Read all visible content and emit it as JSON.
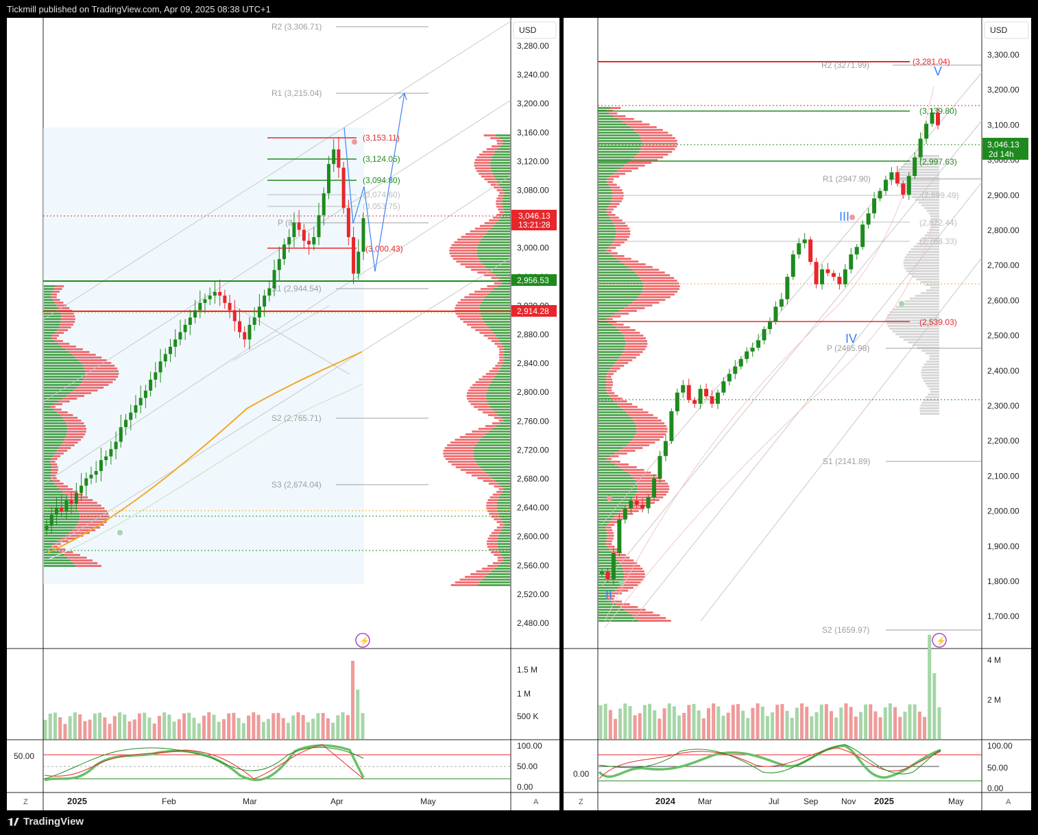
{
  "header": {
    "text": "Tickmill published on TradingView.com, Apr 09, 2025 08:38 UTC+1"
  },
  "footer": {
    "brand": "TradingView"
  },
  "colors": {
    "up": "#1e8a1e",
    "down": "#e8262b",
    "accent_blue": "#3b82f6",
    "orange": "#f5a623",
    "ghost_blue": "#90caf9"
  },
  "left": {
    "currency": "USD",
    "price_ticks": [
      "3,280.00",
      "3,240.00",
      "3,200.00",
      "3,160.00",
      "3,120.00",
      "3,080.00",
      "3,040.00",
      "3,000.00",
      "2,960.00",
      "2,920.00",
      "2,880.00",
      "2,840.00",
      "2,800.00",
      "2,760.00",
      "2,720.00",
      "2,680.00",
      "2,640.00",
      "2,600.00",
      "2,560.00",
      "2,520.00",
      "2,480.00"
    ],
    "last_price": "3,046.13",
    "countdown": "13:21:28",
    "green_tag": "2,956.53",
    "red_tag": "2,914.28",
    "pivots": {
      "r2": "R2 (3,306.71)",
      "r1": "R1 (3,215.04)",
      "p": "P (3,",
      "s1": "S1 (2,944.54)",
      "s2": "S2 (2,765.71)",
      "s3": "S3 (2,674.04)"
    },
    "fib": {
      "f1": "(3,153.11)",
      "f2": "(3,124.05)",
      "f3": "(3,094.80)",
      "f4": "(3,074.60)",
      "f5": "(3,053.75)",
      "f6": "(3,000.43)"
    },
    "vol_ticks": [
      "1.5 M",
      "1 M",
      "500 K"
    ],
    "osc_label": "50.00",
    "osc_ticks": [
      "100.00",
      "50.00",
      "0.00"
    ],
    "time_labels": [
      "2025",
      "Feb",
      "Mar",
      "Apr",
      "May"
    ],
    "zoom_z": "Z",
    "zoom_a": "A"
  },
  "right": {
    "currency": "USD",
    "price_ticks": [
      "3,300.00",
      "3,200.00",
      "3,100.00",
      "3,000.00",
      "2,900.00",
      "2,800.00",
      "2,700.00",
      "2,600.00",
      "2,500.00",
      "2,400.00",
      "2,300.00",
      "2,200.00",
      "2,100.00",
      "2,000.00",
      "1,900.00",
      "1,800.00",
      "1,700.00"
    ],
    "last_price": "3,046.13",
    "countdown": "2d 14h",
    "pivots": {
      "r2": "R2 (3271.99)",
      "r1": "R1 (2947.90)",
      "p": "P (2465.98)",
      "s1": "S1 (2141.89)",
      "s2": "S2 (1659.97)"
    },
    "fib": {
      "f1": "(3,281.04)",
      "f2": "(3,139.80)",
      "f3": "(2,997.63)",
      "f4": "(2,899.49)",
      "f5": "(2,822.44)",
      "f6": "(2,768.33)",
      "f7": "(2,539.03)"
    },
    "waves": {
      "w2": "II",
      "w3": "III",
      "w4": "IV",
      "w5": "V"
    },
    "vol_ticks": [
      "4 M",
      "2 M"
    ],
    "osc_label": "0.00",
    "osc_ticks": [
      "100.00",
      "50.00",
      "0.00"
    ],
    "time_labels": [
      "2024",
      "Mar",
      "Jul",
      "Sep",
      "Nov",
      "2025",
      "May"
    ],
    "zoom_z": "Z",
    "zoom_a": "A"
  },
  "chart_data": [
    {
      "type": "candlestick",
      "title": "",
      "ylim": [
        2460,
        3320
      ],
      "series": [
        {
          "name": "",
          "values": [
            2625,
            2640,
            2650,
            2645,
            2660,
            2655,
            2670,
            2680,
            2690,
            2695,
            2700,
            2715,
            2720,
            2730,
            2740,
            2760,
            2770,
            2780,
            2790,
            2800,
            2810,
            2825,
            2835,
            2850,
            2860,
            2870,
            2880,
            2890,
            2900,
            2910,
            2920,
            2930,
            2935,
            2940,
            2945,
            2940,
            2930,
            2920,
            2905,
            2890,
            2880,
            2900,
            2910,
            2925,
            2940,
            2950,
            2975,
            2990,
            3010,
            3020,
            3040,
            3030,
            3015,
            3010,
            3020,
            3050,
            3080,
            3120,
            3140,
            3115,
            3060,
            3020,
            2970,
            3000,
            3046
          ]
        }
      ],
      "xlabel": "",
      "ylabel": ""
    },
    {
      "type": "candlestick",
      "title": "",
      "ylim": [
        1650,
        3330
      ],
      "series": [
        {
          "name": "",
          "values": [
            1850,
            1830,
            1900,
            1990,
            2020,
            2040,
            2030,
            2020,
            2050,
            2100,
            2160,
            2200,
            2280,
            2330,
            2350,
            2310,
            2300,
            2340,
            2320,
            2300,
            2330,
            2360,
            2380,
            2400,
            2420,
            2440,
            2450,
            2470,
            2500,
            2520,
            2560,
            2580,
            2640,
            2700,
            2730,
            2740,
            2680,
            2620,
            2660,
            2650,
            2640,
            2620,
            2660,
            2700,
            2720,
            2780,
            2810,
            2850,
            2870,
            2900,
            2920,
            2890,
            2860,
            2910,
            2960,
            3010,
            3050,
            3080,
            3046
          ]
        }
      ],
      "xlabel": "",
      "ylabel": ""
    }
  ]
}
